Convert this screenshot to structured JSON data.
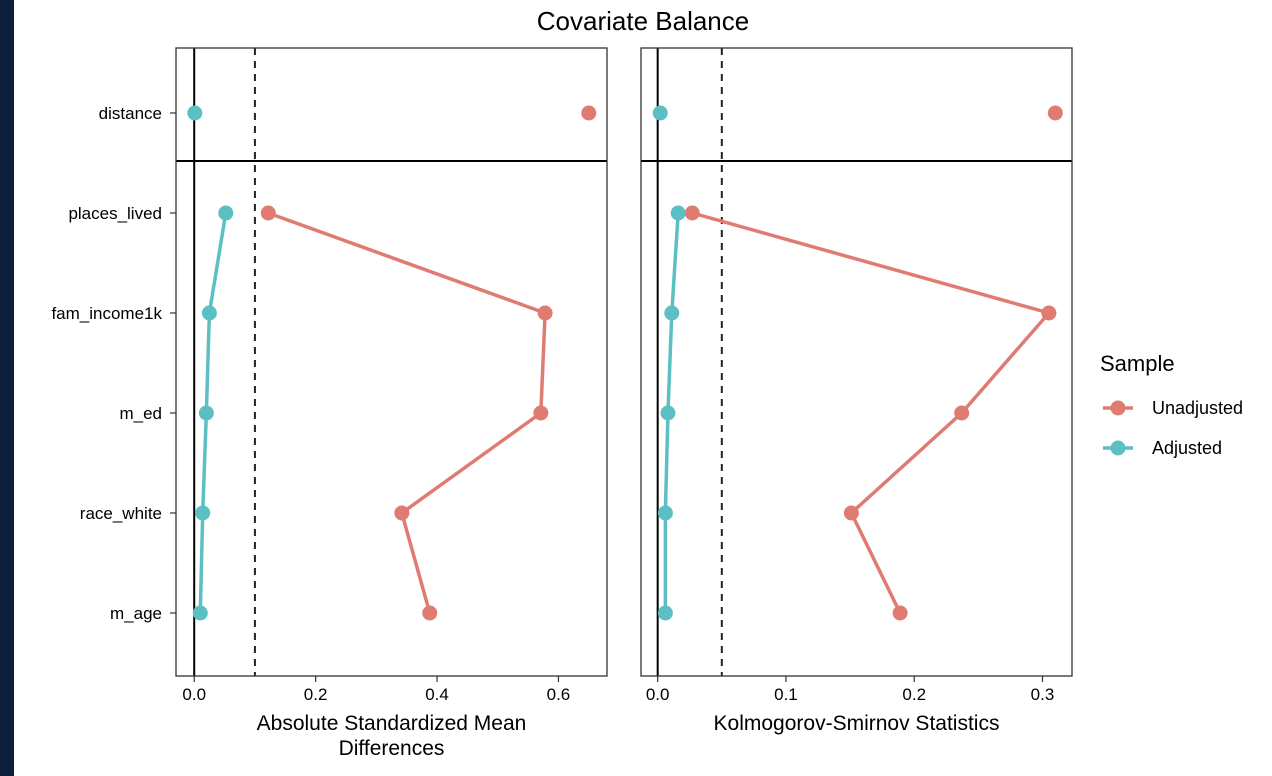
{
  "chart_data": {
    "type": "scatter",
    "title": "Covariate Balance",
    "covariates": [
      "distance",
      "places_lived",
      "fam_income1k",
      "m_ed",
      "race_white",
      "m_age"
    ],
    "legend": {
      "title": "Sample",
      "position": "right",
      "entries": [
        {
          "name": "Unadjusted",
          "color": "#e07b72"
        },
        {
          "name": "Adjusted",
          "color": "#5bbfc4"
        }
      ]
    },
    "panels": [
      {
        "xlabel": [
          "Absolute Standardized Mean",
          "Differences"
        ],
        "xlim": [
          -0.03,
          0.68
        ],
        "xticks": [
          {
            "value": 0.0,
            "label": "0.0"
          },
          {
            "value": 0.2,
            "label": "0.2"
          },
          {
            "value": 0.4,
            "label": "0.4"
          },
          {
            "value": 0.6,
            "label": "0.6"
          }
        ],
        "threshold": 0.1,
        "series": [
          {
            "name": "Unadjusted",
            "color": "#e07b72",
            "values": [
              0.65,
              0.122,
              0.578,
              0.571,
              0.342,
              0.388
            ]
          },
          {
            "name": "Adjusted",
            "color": "#5bbfc4",
            "values": [
              0.001,
              0.052,
              0.025,
              0.02,
              0.014,
              0.01
            ]
          }
        ]
      },
      {
        "xlabel": [
          "Kolmogorov-Smirnov Statistics"
        ],
        "xlim": [
          -0.013,
          0.323
        ],
        "xticks": [
          {
            "value": 0.0,
            "label": "0.0"
          },
          {
            "value": 0.1,
            "label": "0.1"
          },
          {
            "value": 0.2,
            "label": "0.2"
          },
          {
            "value": 0.3,
            "label": "0.3"
          }
        ],
        "threshold": 0.05,
        "series": [
          {
            "name": "Unadjusted",
            "color": "#e07b72",
            "values": [
              0.31,
              0.027,
              0.305,
              0.237,
              0.151,
              0.189
            ]
          },
          {
            "name": "Adjusted",
            "color": "#5bbfc4",
            "values": [
              0.002,
              0.016,
              0.011,
              0.008,
              0.006,
              0.006
            ]
          }
        ]
      }
    ]
  }
}
